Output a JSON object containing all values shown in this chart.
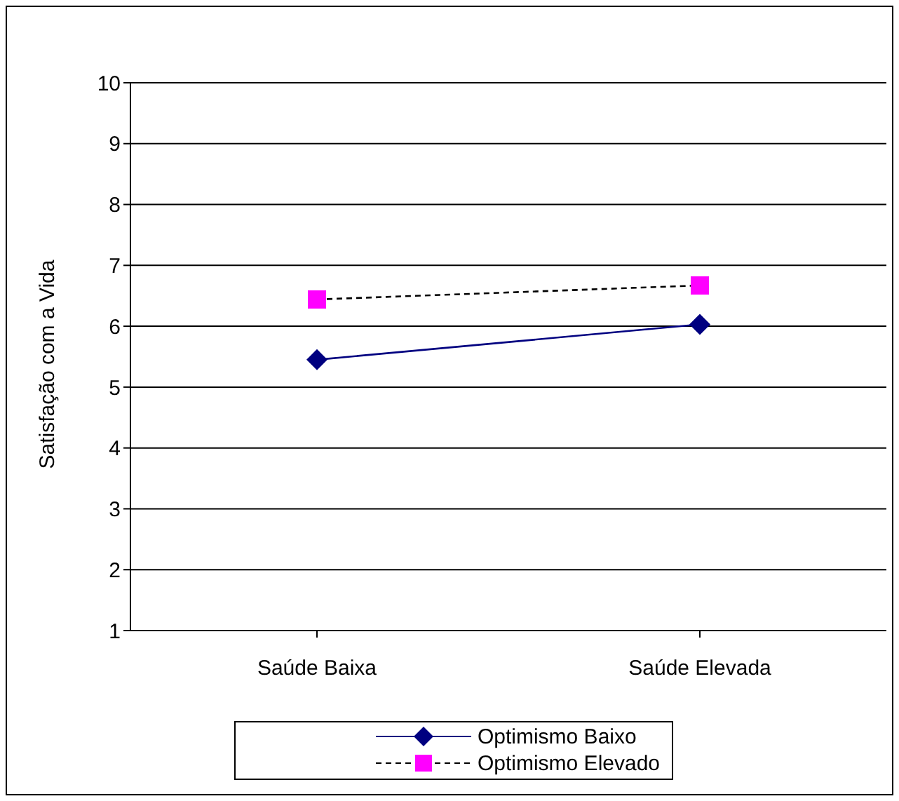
{
  "chart_data": {
    "type": "line",
    "ylabel": "Satisfação com a Vida",
    "categories": [
      "Saúde Baixa",
      "Saúde Elevada"
    ],
    "series": [
      {
        "name": "Optimismo Baixo",
        "color": "#000080",
        "values": [
          5.45,
          6.03
        ],
        "marker": "diamond",
        "line_style": "solid"
      },
      {
        "name": "Optimismo Elevado",
        "color": "#ff00ff",
        "values": [
          6.44,
          6.67
        ],
        "marker": "square",
        "line_style": "dashed"
      }
    ],
    "ylim": [
      1,
      10
    ],
    "yticks": [
      1,
      2,
      3,
      4,
      5,
      6,
      7,
      8,
      9,
      10
    ],
    "grid": "y",
    "legend": "bottom"
  }
}
